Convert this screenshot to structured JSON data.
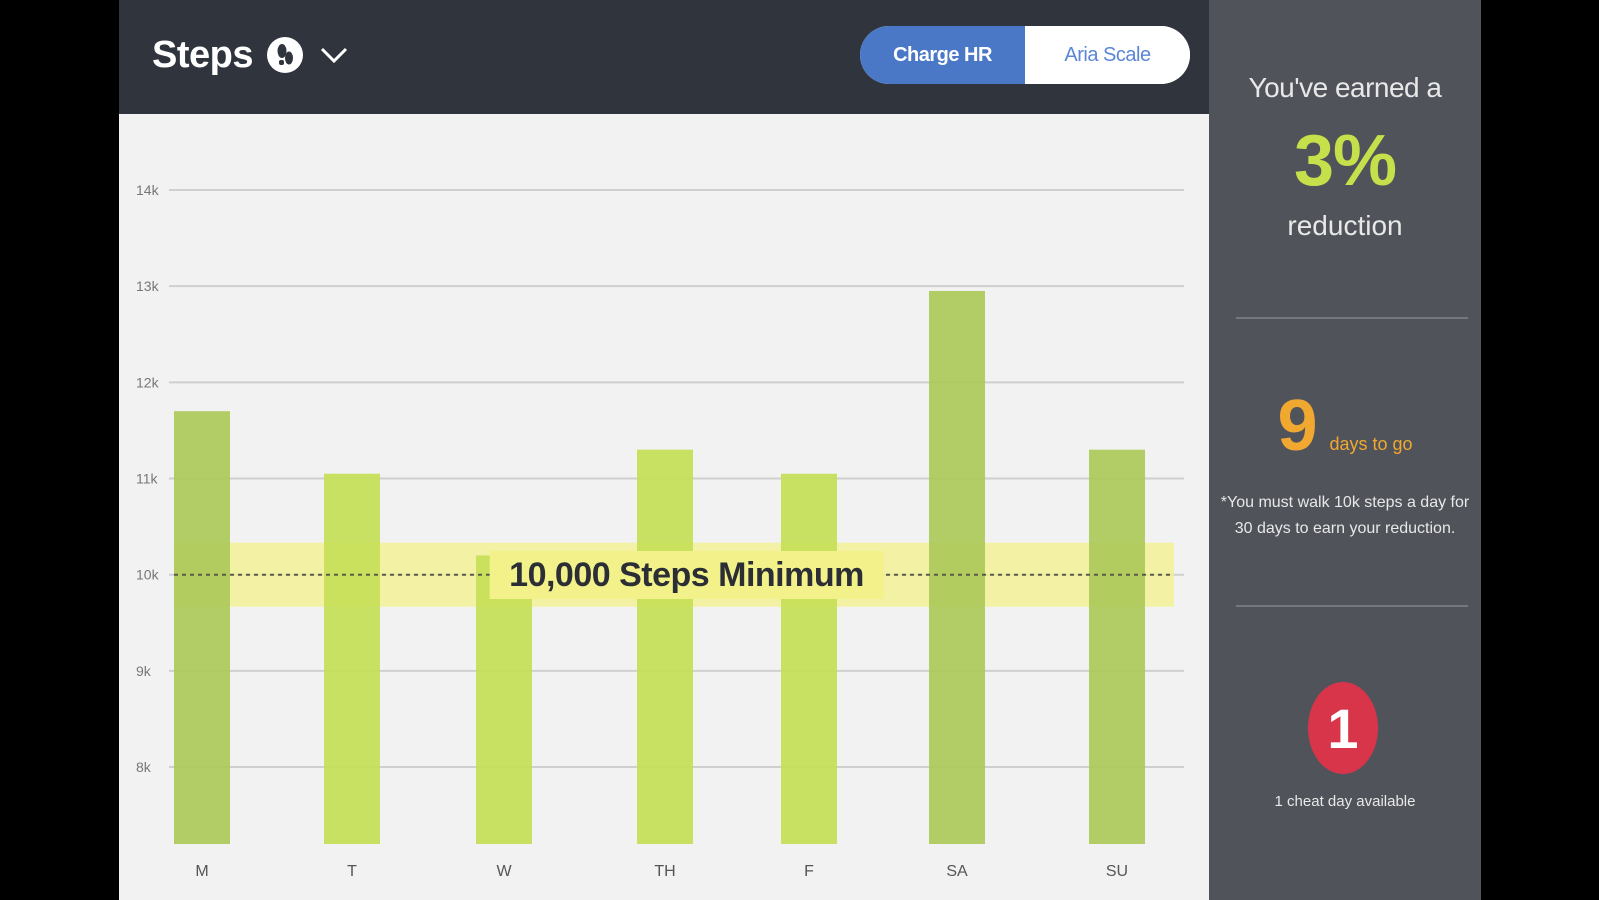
{
  "header": {
    "title": "Steps",
    "toggle": {
      "active": "Charge HR",
      "inactive": "Aria Scale"
    }
  },
  "colors": {
    "header_bg": "#2f343d",
    "toggle_active": "#4a78c7",
    "bar_dark": "#adc95a",
    "bar_light": "#c5df57",
    "minimum_band": "#f3f18a",
    "sidebar_bg": "#50535a",
    "reduction_green": "#c5e04a",
    "days_orange": "#f0a830",
    "cheat_red": "#d8354b"
  },
  "chart_data": {
    "type": "bar",
    "categories": [
      "M",
      "T",
      "W",
      "TH",
      "F",
      "SA",
      "SU"
    ],
    "values": [
      11700,
      11050,
      10200,
      11300,
      11050,
      12950,
      11300
    ],
    "ylim": [
      7200,
      14000
    ],
    "y_ticks": [
      8000,
      9000,
      10000,
      11000,
      12000,
      13000,
      14000
    ],
    "y_tick_labels": [
      "8k",
      "9k",
      "10k",
      "11k",
      "12k",
      "13k",
      "14k"
    ],
    "bar_shades": [
      "dark",
      "light",
      "light",
      "light",
      "light",
      "dark",
      "dark"
    ],
    "threshold": {
      "value": 10000,
      "label": "10,000 Steps Minimum"
    },
    "grid": true
  },
  "sidebar": {
    "earned_text": "You've earned a",
    "reduction_value": "3%",
    "reduction_text": "reduction",
    "days_value": "9",
    "days_text": "days to go",
    "rule_text": "*You must walk 10k steps a day for 30 days to earn your reduction.",
    "cheat_count": "1",
    "cheat_text": "1 cheat day available"
  }
}
